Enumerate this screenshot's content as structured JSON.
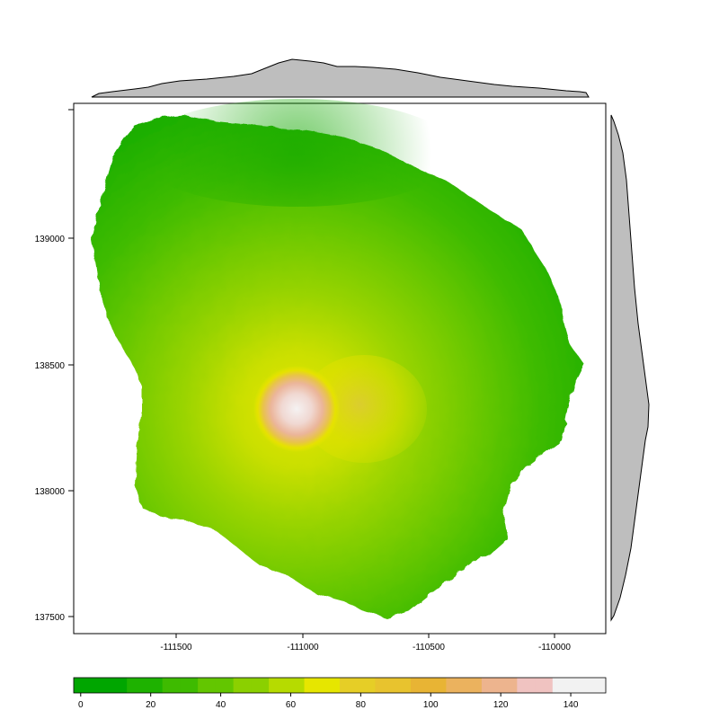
{
  "map": {
    "title": "",
    "x_axis": {
      "ticks": [
        -111500,
        -111000,
        -110500,
        -110000
      ],
      "tick_labels": [
        "-111500",
        "-111000",
        "-110500",
        "-110000"
      ]
    },
    "y_axis": {
      "ticks": [
        139000,
        138500,
        138000,
        137500
      ],
      "tick_labels": [
        "139000",
        "138500",
        "138000",
        "137500"
      ]
    },
    "legend": {
      "ticks": [
        0,
        20,
        40,
        60,
        80,
        100,
        120,
        140
      ],
      "tick_labels": [
        "0",
        "20",
        "40",
        "60",
        "80",
        "100",
        "120",
        "140"
      ],
      "range": [
        -2,
        150
      ],
      "colors": [
        "#00A600",
        "#1EB200",
        "#3EBB00",
        "#63C600",
        "#8BD000",
        "#B6DB00",
        "#E6E600",
        "#E6CE26",
        "#E8C32E",
        "#E8B434",
        "#EBB25E",
        "#EDB48E",
        "#F0C3C1",
        "#F2F2F2"
      ]
    },
    "peak": {
      "x": -111000,
      "y": 138320,
      "value": 148
    },
    "marginals": {
      "top": "x-profile",
      "right": "y-profile",
      "fill": "#BEBEBE"
    }
  }
}
